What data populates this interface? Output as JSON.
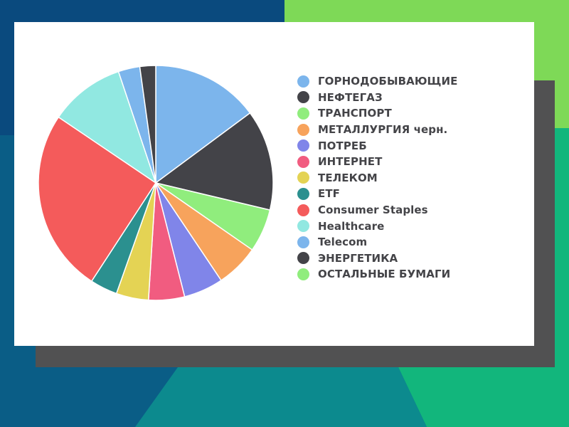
{
  "chart_data": {
    "type": "pie",
    "slices": [
      {
        "label": "ГОРНОДОБЫВАЮЩИЕ",
        "value": 15,
        "color": "#7cb5ec"
      },
      {
        "label": "НЕФТЕГАЗ",
        "value": 14,
        "color": "#434348"
      },
      {
        "label": "ТРАНСПОРТ",
        "value": 6,
        "color": "#90ed7d"
      },
      {
        "label": "МЕТАЛЛУРГИЯ черн.",
        "value": 6,
        "color": "#f7a35c"
      },
      {
        "label": "ПОТРЕБ",
        "value": 5.5,
        "color": "#8085e9"
      },
      {
        "label": "ИНТЕРНЕТ",
        "value": 5,
        "color": "#f15c80"
      },
      {
        "label": "ТЕЛЕКОМ",
        "value": 4.5,
        "color": "#e4d354"
      },
      {
        "label": "ETF",
        "value": 3.8,
        "color": "#2b908f"
      },
      {
        "label": "Consumer Staples",
        "value": 25.5,
        "color": "#f45b5b"
      },
      {
        "label": "Healthcare",
        "value": 10.5,
        "color": "#91e8e1"
      },
      {
        "label": "Telecom",
        "value": 3,
        "color": "#7cb5ec"
      },
      {
        "label": "ЭНЕРГЕТИКА",
        "value": 2.2,
        "color": "#434348"
      },
      {
        "label": "ОСТАЛЬНЫЕ БУМАГИ",
        "value": 0,
        "color": "#90ed7d"
      }
    ],
    "legend_position": "right"
  },
  "background_colors": {
    "top_left": "#0a4a7e",
    "top_right": "#7ed957",
    "bottom_left": "#0a5d86",
    "bottom_center": "#0c8a8e",
    "bottom_right": "#12b67c",
    "shadow": "#515152"
  }
}
